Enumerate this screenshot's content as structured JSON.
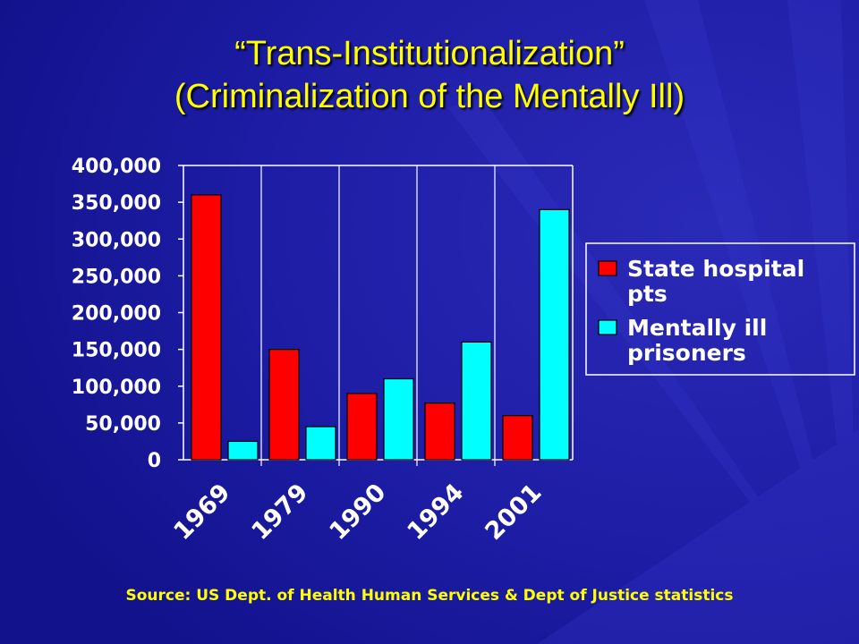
{
  "slide": {
    "title_line1": "“Trans-Institutionalization”",
    "title_line2": "(Criminalization of the Mentally Ill)",
    "source": "Source: US Dept. of Health Human Services & Dept of Justice statistics"
  },
  "colors": {
    "background": "#1a1a9c",
    "title": "#ffff00",
    "axis_text": "#ffffff",
    "state_hospital": "#ff0000",
    "mentally_ill_prisoners": "#00ffff"
  },
  "chart_data": {
    "type": "bar",
    "categories": [
      "1969",
      "1979",
      "1990",
      "1994",
      "2001"
    ],
    "series": [
      {
        "name": "State hospital pts",
        "color": "#ff0000",
        "values": [
          360000,
          150000,
          90000,
          77000,
          60000
        ]
      },
      {
        "name": "Mentally ill prisoners",
        "color": "#00ffff",
        "values": [
          25000,
          45000,
          110000,
          160000,
          340000
        ]
      }
    ],
    "ylim": [
      0,
      400000
    ],
    "yticks": [
      "0",
      "50,000",
      "100,000",
      "150,000",
      "200,000",
      "250,000",
      "300,000",
      "350,000",
      "400,000"
    ],
    "grid": "vertical",
    "legend": {
      "position": "right",
      "entries": [
        {
          "lines": [
            "State hospital",
            "pts"
          ],
          "color": "#ff0000"
        },
        {
          "lines": [
            "Mentally ill",
            "prisoners"
          ],
          "color": "#00ffff"
        }
      ]
    },
    "xlabel": "",
    "ylabel": ""
  }
}
